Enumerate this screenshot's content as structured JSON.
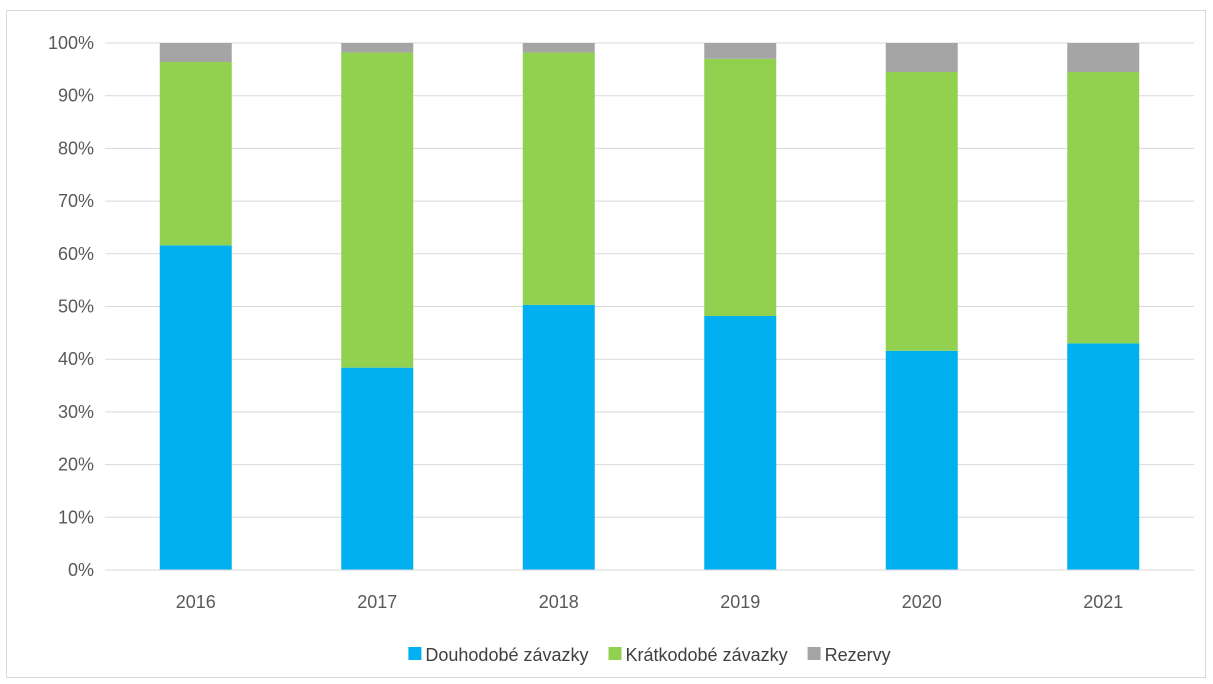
{
  "chart_data": {
    "type": "bar",
    "stacked": true,
    "percent_stacked": true,
    "categories": [
      "2016",
      "2017",
      "2018",
      "2019",
      "2020",
      "2021"
    ],
    "series": [
      {
        "name": "Douhodobé závazky",
        "color": "#00b0f0",
        "values": [
          61.6,
          38.4,
          50.3,
          48.2,
          41.6,
          43.0
        ]
      },
      {
        "name": "Krátkodobé závazky",
        "color": "#92d050",
        "values": [
          34.8,
          59.8,
          47.9,
          48.8,
          52.9,
          51.5
        ]
      },
      {
        "name": "Rezervy",
        "color": "#a5a5a5",
        "values": [
          3.6,
          1.8,
          1.8,
          3.0,
          5.5,
          5.5
        ]
      }
    ],
    "y_ticks": [
      "0%",
      "10%",
      "20%",
      "30%",
      "40%",
      "50%",
      "60%",
      "70%",
      "80%",
      "90%",
      "100%"
    ],
    "ylim": [
      0,
      100
    ],
    "grid": true,
    "gridline_color": "#d9d9d9",
    "legend_position": "bottom"
  }
}
